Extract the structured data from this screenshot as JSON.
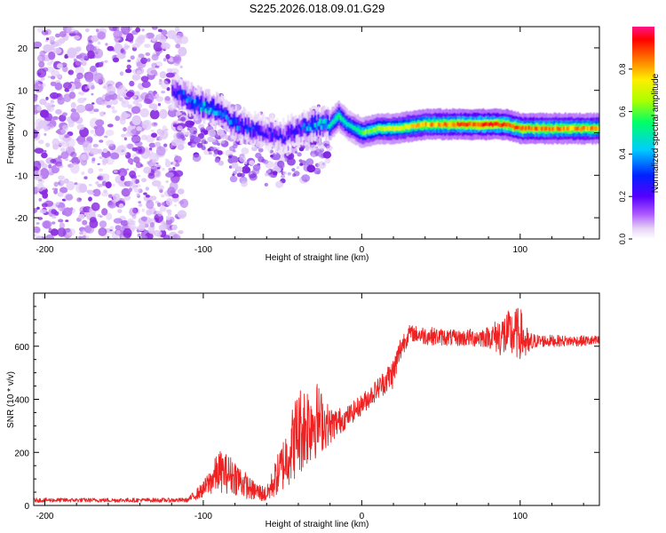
{
  "title": "S225.2026.018.09.01.G29",
  "chart_data": [
    {
      "type": "heatmap",
      "name": "spectrogram",
      "xlabel": "Height of straight line (km)",
      "ylabel": "Frequency (Hz)",
      "xlim": [
        -207,
        150
      ],
      "ylim": [
        -25,
        25
      ],
      "xticks": [
        -200,
        -100,
        0,
        100
      ],
      "yticks": [
        -20,
        -10,
        0,
        10,
        20
      ],
      "colorbar": {
        "label": "Normalized spectral amplitude",
        "range": [
          0,
          1
        ],
        "ticks": [
          "0.0",
          "0.2",
          "0.4",
          "0.6",
          "0.8"
        ]
      },
      "ridge": {
        "x": [
          -120,
          -110,
          -100,
          -90,
          -80,
          -70,
          -60,
          -50,
          -40,
          -30,
          -20,
          -15,
          -10,
          -5,
          0,
          10,
          20,
          40,
          60,
          80,
          90,
          100,
          120,
          150
        ],
        "frequency": [
          10,
          8,
          6,
          5,
          2,
          1,
          0,
          -1,
          1,
          2,
          2,
          4,
          2,
          1,
          0,
          1,
          1,
          2,
          2,
          2,
          2,
          1,
          1,
          1
        ],
        "amplitude": [
          0.25,
          0.35,
          0.45,
          0.4,
          0.35,
          0.3,
          0.25,
          0.25,
          0.3,
          0.45,
          0.5,
          0.55,
          0.5,
          0.5,
          0.6,
          0.65,
          0.7,
          0.8,
          0.85,
          0.9,
          0.88,
          0.85,
          0.82,
          0.8
        ]
      },
      "noise_region": [
        -207,
        -112
      ]
    },
    {
      "type": "line",
      "name": "snr",
      "xlabel": "Height of straight line (km)",
      "ylabel": "SNR (10 * v/v)",
      "xlim": [
        -207,
        150
      ],
      "ylim": [
        0,
        800
      ],
      "xticks": [
        -200,
        -100,
        0,
        100
      ],
      "yticks": [
        0,
        200,
        400,
        600
      ],
      "color": "#ee2222",
      "envelope": {
        "x": [
          -207,
          -110,
          -100,
          -90,
          -80,
          -70,
          -60,
          -50,
          -40,
          -30,
          -20,
          -10,
          0,
          10,
          20,
          25,
          30,
          40,
          60,
          80,
          90,
          100,
          105,
          110,
          130,
          150
        ],
        "snr": [
          20,
          20,
          60,
          130,
          110,
          60,
          40,
          150,
          280,
          330,
          300,
          330,
          380,
          440,
          500,
          600,
          650,
          640,
          630,
          635,
          640,
          650,
          600,
          620,
          620,
          620
        ],
        "spread": [
          8,
          8,
          30,
          80,
          70,
          40,
          30,
          100,
          170,
          160,
          70,
          40,
          40,
          40,
          60,
          50,
          30,
          35,
          30,
          40,
          90,
          100,
          60,
          25,
          20,
          20
        ]
      }
    }
  ]
}
